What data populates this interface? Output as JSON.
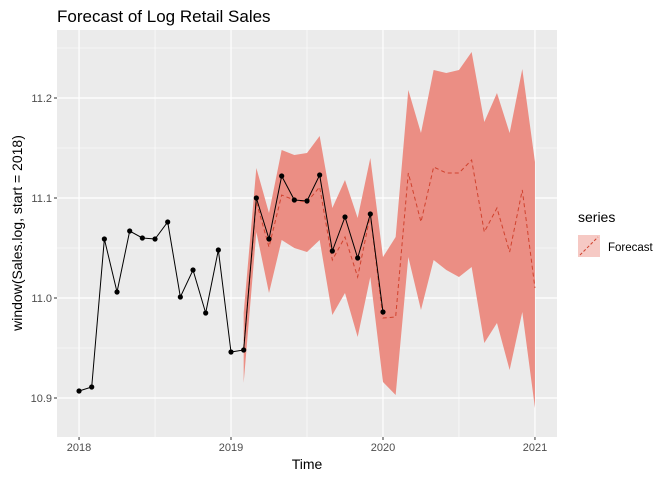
{
  "chart_data": {
    "type": "line",
    "title": "Forecast of Log Retail Sales",
    "xlabel": "Time",
    "ylabel": "window(Sales.log, start = 2018)",
    "xlim": [
      2017.855,
      2021.145
    ],
    "ylim": [
      10.861,
      11.268
    ],
    "x_ticks": [
      2018,
      2019,
      2020,
      2021
    ],
    "x_tick_labels": [
      "2018",
      "2019",
      "2020",
      "2021"
    ],
    "y_ticks": [
      10.9,
      11.0,
      11.1,
      11.2
    ],
    "y_tick_labels": [
      "10.9",
      "11.0",
      "11.1",
      "11.2"
    ],
    "grid": true,
    "legend": {
      "title": "series",
      "entries": [
        "Forecast"
      ],
      "position": "right"
    },
    "colors": {
      "band": "#EB8E84",
      "forecast_line": "#D0432F",
      "actual": "#000000",
      "panel": "#EBEBEB"
    },
    "actual": {
      "start": 2018,
      "frequency": 12,
      "values": [
        10.907,
        10.911,
        11.059,
        11.006,
        11.067,
        11.06,
        11.059,
        11.076,
        11.001,
        11.028,
        10.985,
        11.048,
        10.946,
        10.948,
        11.1,
        11.059,
        11.122,
        11.098,
        11.097,
        11.123,
        11.047,
        11.081,
        11.04,
        11.084,
        10.986
      ]
    },
    "forecast": {
      "start": 2019.0833,
      "frequency": 12,
      "mean": [
        10.95,
        11.096,
        11.051,
        11.103,
        11.098,
        11.096,
        11.111,
        11.038,
        11.061,
        11.021,
        11.083,
        10.98,
        10.981,
        11.125,
        11.076,
        11.131,
        11.125,
        11.125,
        11.138,
        11.066,
        11.09,
        11.046,
        11.108,
        11.01
      ],
      "lower": [
        10.915,
        11.066,
        11.005,
        11.058,
        11.05,
        11.046,
        11.058,
        10.983,
        11.005,
        10.961,
        11.021,
        10.916,
        10.903,
        11.041,
        10.988,
        11.038,
        11.028,
        11.021,
        11.031,
        10.955,
        10.975,
        10.928,
        10.986,
        10.89
      ],
      "upper": [
        10.985,
        11.13,
        11.085,
        11.148,
        11.143,
        11.145,
        11.162,
        11.09,
        11.118,
        11.08,
        11.14,
        11.041,
        11.061,
        11.208,
        11.165,
        11.228,
        11.225,
        11.228,
        11.246,
        11.176,
        11.205,
        11.165,
        11.229,
        11.136
      ]
    }
  }
}
